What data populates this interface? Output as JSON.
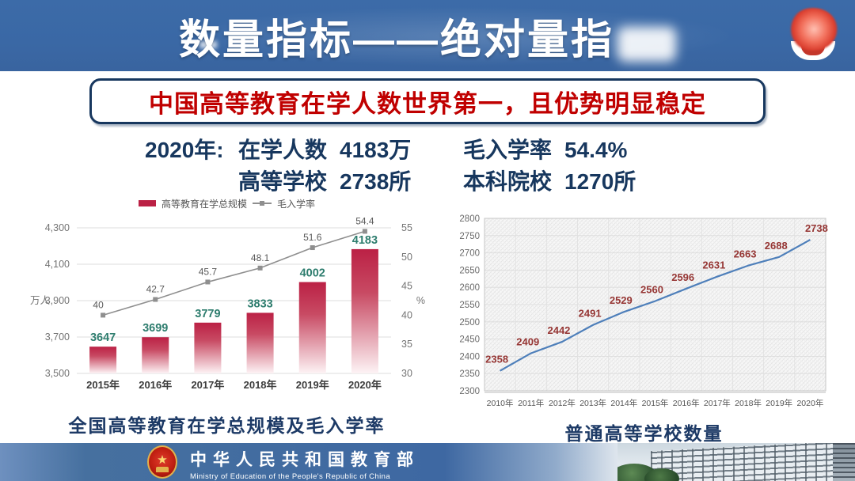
{
  "header": {
    "title": "数量指标——绝对量指"
  },
  "highlight": {
    "text": "中国高等教育在学人数世界第一，且优势明显稳定"
  },
  "stats": {
    "year": "2020年:",
    "items": [
      {
        "label": "在学人数",
        "value": "4183万"
      },
      {
        "label": "毛入学率",
        "value": "54.4%"
      },
      {
        "label": "高等学校",
        "value": "2738所"
      },
      {
        "label": "本科院校",
        "value": "1270所"
      }
    ]
  },
  "chart_data": [
    {
      "type": "bar",
      "title": "全国高等教育在学总规模及毛入学率",
      "categories": [
        "2015年",
        "2016年",
        "2017年",
        "2018年",
        "2019年",
        "2020年"
      ],
      "series": [
        {
          "name": "高等教育在学总规模",
          "type": "bar",
          "axis": "left",
          "values": [
            3647,
            3699,
            3779,
            3833,
            4002,
            4183
          ],
          "color": "#bb2145",
          "label_color": "#2e7d6e"
        },
        {
          "name": "毛入学率",
          "type": "line",
          "axis": "right",
          "values": [
            40,
            42.7,
            45.7,
            48.1,
            51.6,
            54.4
          ],
          "color": "#8f8f8f",
          "label_color": "#595959"
        }
      ],
      "left_axis": {
        "title": "万人",
        "min": 3500,
        "max": 4300,
        "step": 200
      },
      "right_axis": {
        "title": "%",
        "min": 30,
        "max": 55,
        "step": 5
      },
      "legend_position": "top",
      "grid": true
    },
    {
      "type": "line",
      "title": "普通高等学校数量",
      "categories": [
        "2010年",
        "2011年",
        "2012年",
        "2013年",
        "2014年",
        "2015年",
        "2016年",
        "2017年",
        "2018年",
        "2019年",
        "2020年"
      ],
      "values": [
        2358,
        2409,
        2442,
        2491,
        2529,
        2560,
        2596,
        2631,
        2663,
        2688,
        2738
      ],
      "line_color": "#4e7fba",
      "label_color": "#963634",
      "y_axis": {
        "min": 2300,
        "max": 2800,
        "step": 50
      },
      "grid": true,
      "background": "hatched"
    }
  ],
  "footer": {
    "org_cn": "中华人民共和国教育部",
    "org_en": "Ministry of Education of the People's Republic of China"
  }
}
